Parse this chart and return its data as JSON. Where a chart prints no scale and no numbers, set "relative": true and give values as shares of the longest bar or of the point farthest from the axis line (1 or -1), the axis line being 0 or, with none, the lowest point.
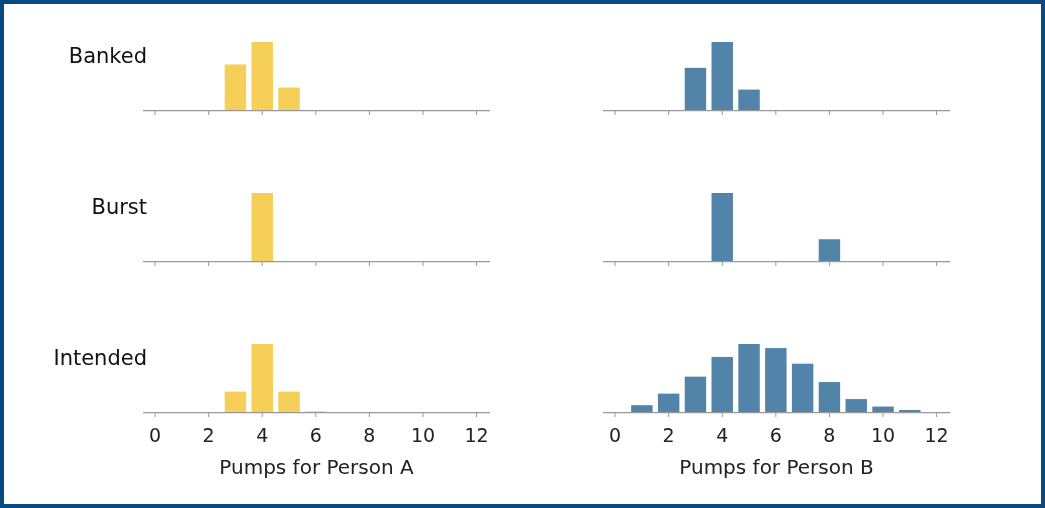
{
  "chart_data": [
    {
      "type": "bar",
      "ylabel": "Banked",
      "relative": true,
      "x": [
        3,
        4,
        5
      ],
      "values": [
        0.67,
        1,
        0.33
      ],
      "color": "#f5cf57",
      "xlim": [
        -0.45,
        12.5
      ],
      "xticks": [
        0,
        2,
        4,
        6,
        8,
        10,
        12
      ],
      "tick_labels": false
    },
    {
      "type": "bar",
      "relative": true,
      "x": [
        3,
        4,
        5
      ],
      "values": [
        0.62,
        1,
        0.3
      ],
      "color": "#5283a8",
      "xlim": [
        -0.45,
        12.5
      ],
      "xticks": [
        0,
        2,
        4,
        6,
        8,
        10,
        12
      ],
      "tick_labels": false
    },
    {
      "type": "bar",
      "ylabel": "Burst",
      "relative": true,
      "x": [
        4
      ],
      "values": [
        1
      ],
      "color": "#f5cf57",
      "xlim": [
        -0.45,
        12.5
      ],
      "xticks": [
        0,
        2,
        4,
        6,
        8,
        10,
        12
      ],
      "tick_labels": false
    },
    {
      "type": "bar",
      "relative": true,
      "x": [
        4,
        8
      ],
      "values": [
        1,
        0.32
      ],
      "color": "#5283a8",
      "xlim": [
        -0.45,
        12.5
      ],
      "xticks": [
        0,
        2,
        4,
        6,
        8,
        10,
        12
      ],
      "tick_labels": false
    },
    {
      "type": "bar",
      "ylabel": "Intended",
      "xlabel": "Pumps for Person A",
      "relative": true,
      "x": [
        3,
        4,
        5,
        6
      ],
      "values": [
        0.3,
        1,
        0.3,
        0.01
      ],
      "color": "#f5cf57",
      "xlim": [
        -0.45,
        12.5
      ],
      "xticks": [
        0,
        2,
        4,
        6,
        8,
        10,
        12
      ],
      "tick_labels": "x"
    },
    {
      "type": "bar",
      "xlabel": "Pumps for Person B",
      "relative": true,
      "x": [
        1,
        2,
        3,
        4,
        5,
        6,
        7,
        8,
        9,
        10,
        11
      ],
      "values": [
        0.1,
        0.27,
        0.52,
        0.81,
        1,
        0.94,
        0.71,
        0.44,
        0.19,
        0.08,
        0.03
      ],
      "color": "#5283a8",
      "xlim": [
        -0.45,
        12.5
      ],
      "xticks": [
        0,
        2,
        4,
        6,
        8,
        10,
        12
      ],
      "tick_labels": "x"
    }
  ]
}
